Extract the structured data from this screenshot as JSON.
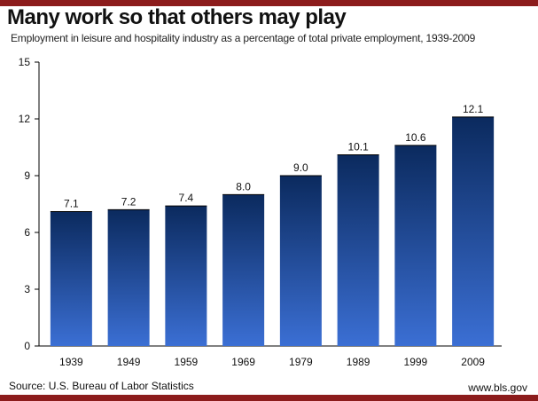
{
  "header": {
    "title": "Many work so that others may play",
    "subtitle": "Employment in leisure and hospitality industry as a percentage of total private employment, 1939-2009"
  },
  "footer": {
    "source": "Source: U.S. Bureau of Labor Statistics",
    "site": "www.bls.gov"
  },
  "colors": {
    "accent_rule": "#8c1c1c",
    "bar_top": "#0b2a5e",
    "bar_bottom": "#3b6fd4"
  },
  "chart_data": {
    "type": "bar",
    "categories": [
      "1939",
      "1949",
      "1959",
      "1969",
      "1979",
      "1989",
      "1999",
      "2009"
    ],
    "values": [
      7.1,
      7.2,
      7.4,
      8.0,
      9.0,
      10.1,
      10.6,
      12.1
    ],
    "value_labels": [
      "7.1",
      "7.2",
      "7.4",
      "8.0",
      "9.0",
      "10.1",
      "10.6",
      "12.1"
    ],
    "y_ticks": [
      "0",
      "3",
      "6",
      "9",
      "12",
      "15"
    ],
    "ylim": [
      0,
      15
    ],
    "grid": false,
    "legend": false
  }
}
